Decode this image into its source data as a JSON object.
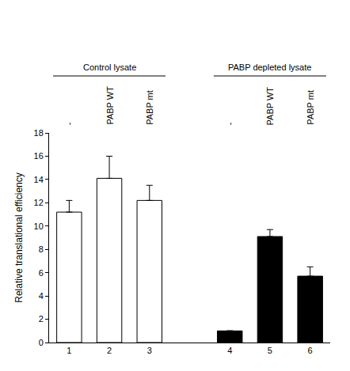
{
  "chart_data": {
    "type": "bar",
    "categories": [
      "1",
      "2",
      "3",
      null,
      "4",
      "5",
      "6"
    ],
    "values": [
      11.2,
      14.1,
      12.2,
      null,
      1.0,
      9.1,
      5.7
    ],
    "errors": [
      1.0,
      1.9,
      1.3,
      null,
      null,
      0.6,
      0.8
    ],
    "colors": [
      "#ffffff",
      "#ffffff",
      "#ffffff",
      null,
      "#000000",
      "#000000",
      "#000000"
    ],
    "y_label": "Relative translational efficiency",
    "ylim": [
      0,
      18
    ],
    "yticks": [
      0,
      2,
      4,
      6,
      8,
      10,
      12,
      14,
      16,
      18
    ],
    "grid": false,
    "annotations": {
      "conditions": [
        "-",
        "PABP WT",
        "PABP mt",
        null,
        "-",
        "PABP WT",
        "PABP mt"
      ],
      "groups": [
        {
          "text": "Control lysate",
          "categories": [
            "1",
            "2",
            "3"
          ]
        },
        {
          "text": "PABP depleted lysate",
          "categories": [
            "4",
            "5",
            "6"
          ]
        }
      ]
    }
  }
}
